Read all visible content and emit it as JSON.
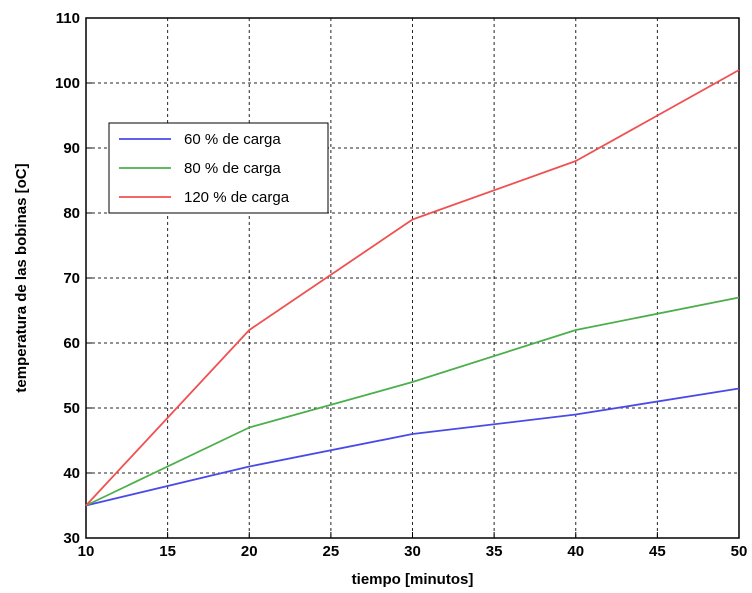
{
  "chart_data": {
    "type": "line",
    "xlabel": "tiempo [minutos]",
    "ylabel": "temperatura de las bobinas [oC]",
    "xlim": [
      10,
      50
    ],
    "ylim": [
      30,
      110
    ],
    "xticks": [
      10,
      15,
      20,
      25,
      30,
      35,
      40,
      45,
      50
    ],
    "yticks": [
      30,
      40,
      50,
      60,
      70,
      80,
      90,
      100,
      110
    ],
    "grid": true,
    "legend_position": "upper-left",
    "series": [
      {
        "name": "60 % de carga",
        "color": "#4a4ae8",
        "x": [
          10,
          20,
          30,
          40,
          50
        ],
        "y": [
          35,
          41,
          46,
          49,
          53
        ]
      },
      {
        "name": "80 % de carga",
        "color": "#4caf4c",
        "x": [
          10,
          20,
          30,
          40,
          50
        ],
        "y": [
          35,
          47,
          54,
          62,
          67
        ]
      },
      {
        "name": "120 % de carga",
        "color": "#f05050",
        "x": [
          10,
          20,
          30,
          40,
          50
        ],
        "y": [
          35,
          62,
          79,
          88,
          102
        ]
      }
    ]
  }
}
